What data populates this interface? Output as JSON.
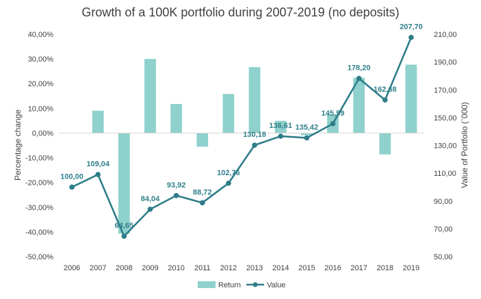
{
  "chart_data": {
    "type": "bar+line",
    "title": "Growth of a 100K portfolio during 2007-2019 (no deposits)",
    "categories": [
      "2006",
      "2007",
      "2008",
      "2009",
      "2010",
      "2011",
      "2012",
      "2013",
      "2014",
      "2015",
      "2016",
      "2017",
      "2018",
      "2019"
    ],
    "series": [
      {
        "name": "Return",
        "type": "bar",
        "axis": "left",
        "color": "#8fd1cc",
        "values": [
          0,
          9.04,
          -40.7,
          30.0,
          11.76,
          -5.53,
          15.82,
          26.68,
          4.94,
          -0.87,
          7.5,
          22.4,
          -8.65,
          27.69
        ]
      },
      {
        "name": "Value",
        "type": "line",
        "axis": "right",
        "color": "#2e7d89",
        "values": [
          100.0,
          109.04,
          64.65,
          84.04,
          93.92,
          88.72,
          102.76,
          130.18,
          136.61,
          135.42,
          145.59,
          178.2,
          162.68,
          207.7
        ],
        "labels": [
          "100,00",
          "109,04",
          "64,65",
          "84,04",
          "93,92",
          "88,72",
          "102,76",
          "130,18",
          "136,61",
          "135,42",
          "145,59",
          "178,20",
          "162,68",
          "207,70"
        ]
      }
    ],
    "ylabel": "Percentage change",
    "y2label": "Value of Portfolio (`000)",
    "ylim": [
      -50,
      40
    ],
    "y2lim": [
      50,
      210
    ],
    "yticks": [
      "40,00%",
      "30,00%",
      "20,00%",
      "10,00%",
      "0,00%",
      "-10,00%",
      "-20,00%",
      "-30,00%",
      "-40,00%",
      "-50,00%"
    ],
    "y2ticks": [
      "210,00",
      "190,00",
      "170,00",
      "150,00",
      "130,00",
      "110,00",
      "90,00",
      "70,00",
      "50,00"
    ],
    "legend_position": "bottom",
    "grid": false
  }
}
